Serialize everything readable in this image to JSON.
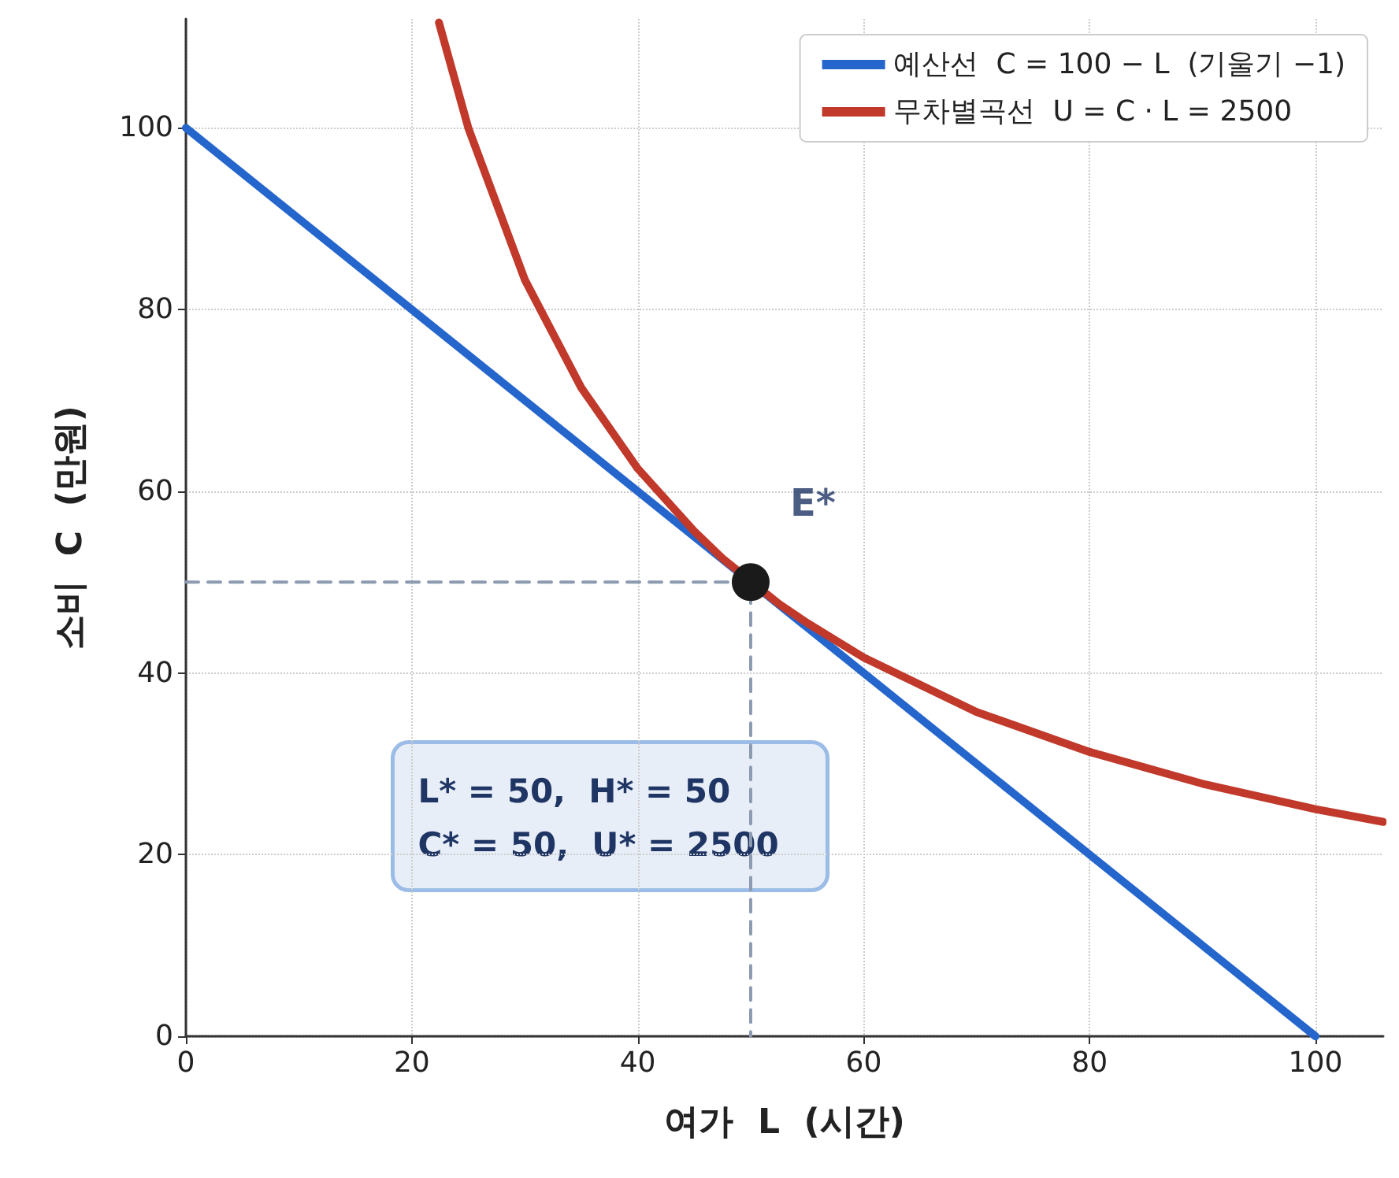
{
  "chart_data": {
    "type": "line",
    "xlabel": "여가  L  (시간)",
    "ylabel": "소비  C  (만원)",
    "xlim": [
      0,
      106
    ],
    "ylim": [
      0,
      112
    ],
    "xticks": [
      0,
      20,
      40,
      60,
      80,
      100
    ],
    "yticks": [
      0,
      20,
      40,
      60,
      80,
      100
    ],
    "grid": true,
    "legend": "top right",
    "marker": "none",
    "line_style": "solid",
    "series": [
      {
        "name": "예산선  C = 100 − L  (기울기 −1)",
        "color": "#2566cc",
        "x": [
          0,
          100
        ],
        "values": [
          100,
          0
        ]
      },
      {
        "name": "무차별곡선  U = C · L = 2500",
        "color": "#c0392b",
        "x": [
          22.4,
          25,
          30,
          35,
          40,
          45,
          47.5,
          52.5,
          55,
          60,
          70,
          80,
          90,
          100,
          106
        ],
        "values": [
          111.6,
          100,
          83.3,
          71.4,
          62.5,
          55.6,
          52.6,
          47.6,
          45.5,
          41.7,
          35.7,
          31.3,
          27.8,
          25,
          23.6
        ]
      },
      {
        "color": "#8c9bb0",
        "line_style": "dashed",
        "x": [
          0,
          50,
          50
        ],
        "values": [
          50,
          50,
          0
        ]
      },
      {
        "type": "scatter",
        "marker": "circle",
        "color": "#1a1a1a",
        "x": [
          50
        ],
        "values": [
          50
        ]
      }
    ],
    "annotations": [
      {
        "text": "E*",
        "x": 50,
        "y": 50
      },
      "L* = 50,  H* = 50\nC* = 50,  U* = 2500"
    ]
  }
}
